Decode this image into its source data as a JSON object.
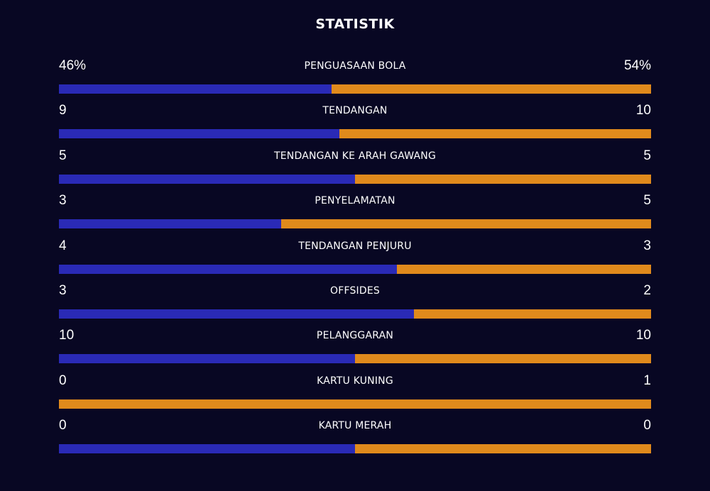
{
  "title": "STATISTIK",
  "colors": {
    "background": "#080723",
    "home": "#2a2ab6",
    "away": "#e08a1c"
  },
  "stats": [
    {
      "label": "PENGUASAAN BOLA",
      "left": "46%",
      "right": "54%",
      "home_share": 0.46
    },
    {
      "label": "TENDANGAN",
      "left": "9",
      "right": "10",
      "home_share": 0.474
    },
    {
      "label": "TENDANGAN KE ARAH GAWANG",
      "left": "5",
      "right": "5",
      "home_share": 0.5
    },
    {
      "label": "PENYELAMATAN",
      "left": "3",
      "right": "5",
      "home_share": 0.375
    },
    {
      "label": "TENDANGAN PENJURU",
      "left": "4",
      "right": "3",
      "home_share": 0.571
    },
    {
      "label": "OFFSIDES",
      "left": "3",
      "right": "2",
      "home_share": 0.6
    },
    {
      "label": "PELANGGARAN",
      "left": "10",
      "right": "10",
      "home_share": 0.5
    },
    {
      "label": "KARTU KUNING",
      "left": "0",
      "right": "1",
      "home_share": 0.0
    },
    {
      "label": "KARTU MERAH",
      "left": "0",
      "right": "0",
      "home_share": 0.5
    }
  ]
}
